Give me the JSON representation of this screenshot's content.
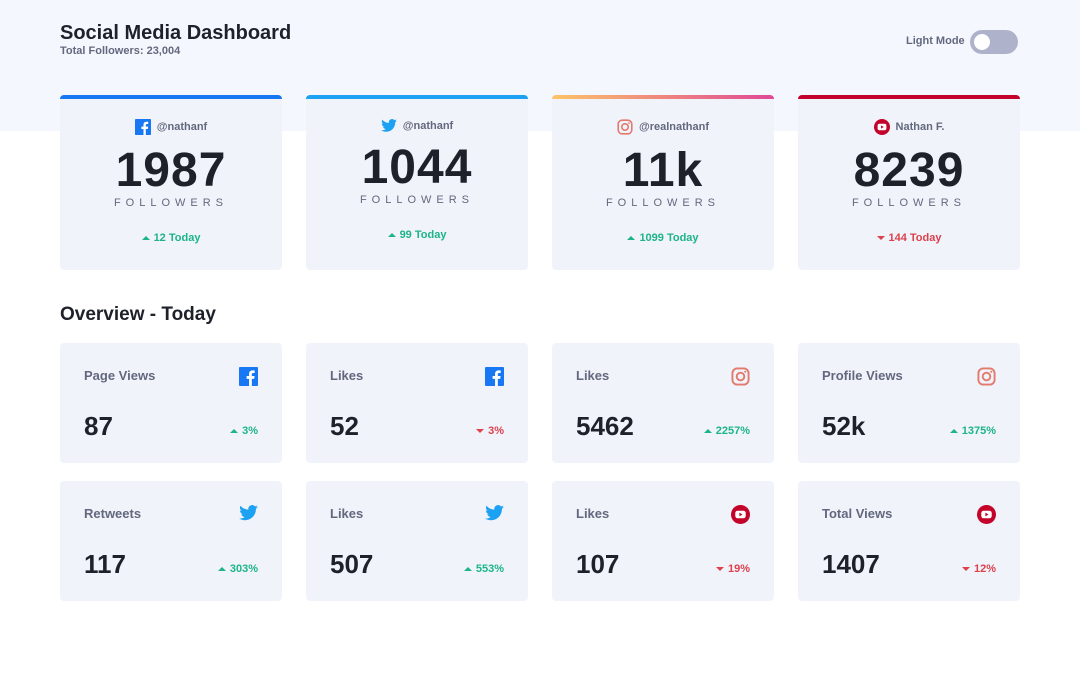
{
  "header": {
    "title": "Social Media Dashboard",
    "total_followers": "Total Followers: 23,004",
    "mode_label": "Light Mode",
    "dark_mode_on": false
  },
  "colors": {
    "facebook": "#1877f2",
    "twitter": "#1da1f2",
    "instagram_start": "#fdc468",
    "instagram_end": "#df4996",
    "youtube": "#c4032a",
    "up": "#1db489",
    "down": "#dc414c"
  },
  "followers": [
    {
      "platform": "facebook",
      "icon": "facebook-icon",
      "handle": "@nathanf",
      "count": "1987",
      "label": "FOLLOWERS",
      "today": "12 Today",
      "trend": "up"
    },
    {
      "platform": "twitter",
      "icon": "twitter-icon",
      "handle": "@nathanf",
      "count": "1044",
      "label": "FOLLOWERS",
      "today": "99 Today",
      "trend": "up"
    },
    {
      "platform": "instagram",
      "icon": "instagram-icon",
      "handle": "@realnathanf",
      "count": "11k",
      "label": "FOLLOWERS",
      "today": "1099 Today",
      "trend": "up"
    },
    {
      "platform": "youtube",
      "icon": "youtube-icon",
      "handle": "Nathan F.",
      "count": "8239",
      "label": "FOLLOWERS",
      "today": "144 Today",
      "trend": "down"
    }
  ],
  "overview": {
    "title": "Overview - Today",
    "items": [
      {
        "label": "Page Views",
        "platform": "facebook",
        "value": "87",
        "change": "3%",
        "trend": "up"
      },
      {
        "label": "Likes",
        "platform": "facebook",
        "value": "52",
        "change": "3%",
        "trend": "down"
      },
      {
        "label": "Likes",
        "platform": "instagram",
        "value": "5462",
        "change": "2257%",
        "trend": "up"
      },
      {
        "label": "Profile Views",
        "platform": "instagram",
        "value": "52k",
        "change": "1375%",
        "trend": "up"
      },
      {
        "label": "Retweets",
        "platform": "twitter",
        "value": "117",
        "change": "303%",
        "trend": "up"
      },
      {
        "label": "Likes",
        "platform": "twitter",
        "value": "507",
        "change": "553%",
        "trend": "up"
      },
      {
        "label": "Likes",
        "platform": "youtube",
        "value": "107",
        "change": "19%",
        "trend": "down"
      },
      {
        "label": "Total Views",
        "platform": "youtube",
        "value": "1407",
        "change": "12%",
        "trend": "down"
      }
    ]
  }
}
